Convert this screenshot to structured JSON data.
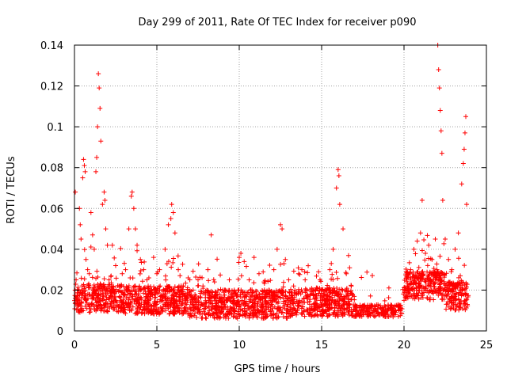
{
  "chart_data": {
    "type": "scatter",
    "title": "Day 299 of 2011, Rate Of TEC Index for receiver p090",
    "xlabel": "GPS time / hours",
    "ylabel": "ROTI / TECUs",
    "xlim": [
      0,
      25
    ],
    "ylim": [
      0,
      0.14
    ],
    "xticks": [
      0,
      5,
      10,
      15,
      20,
      25
    ],
    "xtick_labels": [
      "0",
      "5",
      "10",
      "15",
      "20",
      "25"
    ],
    "yticks": [
      0,
      0.02,
      0.04,
      0.06,
      0.08,
      0.1,
      0.12,
      0.14
    ],
    "ytick_labels": [
      "0",
      "0.02",
      "0.04",
      "0.06",
      "0.08",
      "0.1",
      "0.12",
      "0.14"
    ],
    "grid": true,
    "marker": "+",
    "color": "#ff0000",
    "series": [
      {
        "name": "ROTI",
        "points": [
          [
            0.05,
            0.068
          ],
          [
            0.1,
            0.025
          ],
          [
            0.2,
            0.015
          ],
          [
            0.3,
            0.06
          ],
          [
            0.35,
            0.052
          ],
          [
            0.4,
            0.045
          ],
          [
            0.5,
            0.075
          ],
          [
            0.55,
            0.084
          ],
          [
            0.6,
            0.081
          ],
          [
            0.65,
            0.078
          ],
          [
            0.7,
            0.035
          ],
          [
            0.8,
            0.03
          ],
          [
            0.9,
            0.028
          ],
          [
            1.0,
            0.058
          ],
          [
            1.1,
            0.047
          ],
          [
            1.2,
            0.04
          ],
          [
            1.3,
            0.078
          ],
          [
            1.35,
            0.085
          ],
          [
            1.4,
            0.1
          ],
          [
            1.45,
            0.126
          ],
          [
            1.5,
            0.119
          ],
          [
            1.55,
            0.109
          ],
          [
            1.6,
            0.093
          ],
          [
            1.7,
            0.062
          ],
          [
            1.8,
            0.068
          ],
          [
            1.85,
            0.064
          ],
          [
            1.9,
            0.05
          ],
          [
            2.0,
            0.042
          ],
          [
            2.1,
            0.025
          ],
          [
            2.3,
            0.042
          ],
          [
            2.5,
            0.032
          ],
          [
            2.7,
            0.022
          ],
          [
            2.9,
            0.028
          ],
          [
            3.1,
            0.03
          ],
          [
            3.3,
            0.05
          ],
          [
            3.45,
            0.066
          ],
          [
            3.5,
            0.068
          ],
          [
            3.6,
            0.06
          ],
          [
            3.7,
            0.05
          ],
          [
            3.8,
            0.042
          ],
          [
            4.0,
            0.035
          ],
          [
            4.2,
            0.03
          ],
          [
            4.4,
            0.025
          ],
          [
            4.6,
            0.02
          ],
          [
            4.8,
            0.036
          ],
          [
            5.0,
            0.028
          ],
          [
            5.2,
            0.022
          ],
          [
            5.5,
            0.04
          ],
          [
            5.7,
            0.052
          ],
          [
            5.85,
            0.055
          ],
          [
            5.9,
            0.062
          ],
          [
            6.0,
            0.058
          ],
          [
            6.1,
            0.048
          ],
          [
            6.3,
            0.03
          ],
          [
            6.6,
            0.022
          ],
          [
            6.9,
            0.026
          ],
          [
            7.2,
            0.02
          ],
          [
            7.5,
            0.025
          ],
          [
            7.8,
            0.022
          ],
          [
            8.1,
            0.03
          ],
          [
            8.3,
            0.047
          ],
          [
            8.5,
            0.024
          ],
          [
            8.8,
            0.018
          ],
          [
            9.1,
            0.02
          ],
          [
            9.4,
            0.025
          ],
          [
            9.7,
            0.02
          ],
          [
            10.0,
            0.036
          ],
          [
            10.1,
            0.038
          ],
          [
            10.3,
            0.034
          ],
          [
            10.6,
            0.025
          ],
          [
            10.9,
            0.036
          ],
          [
            11.2,
            0.028
          ],
          [
            11.5,
            0.024
          ],
          [
            11.8,
            0.02
          ],
          [
            12.1,
            0.03
          ],
          [
            12.3,
            0.04
          ],
          [
            12.5,
            0.052
          ],
          [
            12.6,
            0.05
          ],
          [
            12.8,
            0.035
          ],
          [
            13.0,
            0.025
          ],
          [
            13.3,
            0.022
          ],
          [
            13.6,
            0.028
          ],
          [
            13.8,
            0.03
          ],
          [
            14.0,
            0.025
          ],
          [
            14.3,
            0.018
          ],
          [
            14.6,
            0.02
          ],
          [
            14.9,
            0.025
          ],
          [
            15.2,
            0.018
          ],
          [
            15.5,
            0.03
          ],
          [
            15.7,
            0.04
          ],
          [
            15.9,
            0.07
          ],
          [
            16.0,
            0.079
          ],
          [
            16.05,
            0.076
          ],
          [
            16.1,
            0.062
          ],
          [
            16.3,
            0.05
          ],
          [
            16.5,
            0.028
          ],
          [
            16.8,
            0.022
          ],
          [
            17.1,
            0.012
          ],
          [
            17.4,
            0.01
          ],
          [
            17.7,
            0.011
          ],
          [
            18.0,
            0.012
          ],
          [
            18.3,
            0.01
          ],
          [
            18.6,
            0.011
          ],
          [
            18.9,
            0.009
          ],
          [
            19.2,
            0.01
          ],
          [
            19.5,
            0.009
          ],
          [
            19.8,
            0.011
          ],
          [
            20.0,
            0.015
          ],
          [
            20.2,
            0.022
          ],
          [
            20.4,
            0.03
          ],
          [
            20.6,
            0.04
          ],
          [
            20.8,
            0.044
          ],
          [
            21.0,
            0.048
          ],
          [
            21.1,
            0.064
          ],
          [
            21.3,
            0.038
          ],
          [
            21.5,
            0.042
          ],
          [
            21.7,
            0.035
          ],
          [
            21.9,
            0.045
          ],
          [
            22.0,
            0.03
          ],
          [
            22.05,
            0.14
          ],
          [
            22.1,
            0.128
          ],
          [
            22.15,
            0.119
          ],
          [
            22.2,
            0.108
          ],
          [
            22.25,
            0.098
          ],
          [
            22.3,
            0.087
          ],
          [
            22.35,
            0.064
          ],
          [
            22.5,
            0.045
          ],
          [
            22.7,
            0.035
          ],
          [
            22.9,
            0.03
          ],
          [
            23.1,
            0.04
          ],
          [
            23.3,
            0.048
          ],
          [
            23.5,
            0.072
          ],
          [
            23.6,
            0.082
          ],
          [
            23.65,
            0.089
          ],
          [
            23.7,
            0.097
          ],
          [
            23.75,
            0.105
          ],
          [
            23.8,
            0.062
          ]
        ]
      }
    ]
  }
}
